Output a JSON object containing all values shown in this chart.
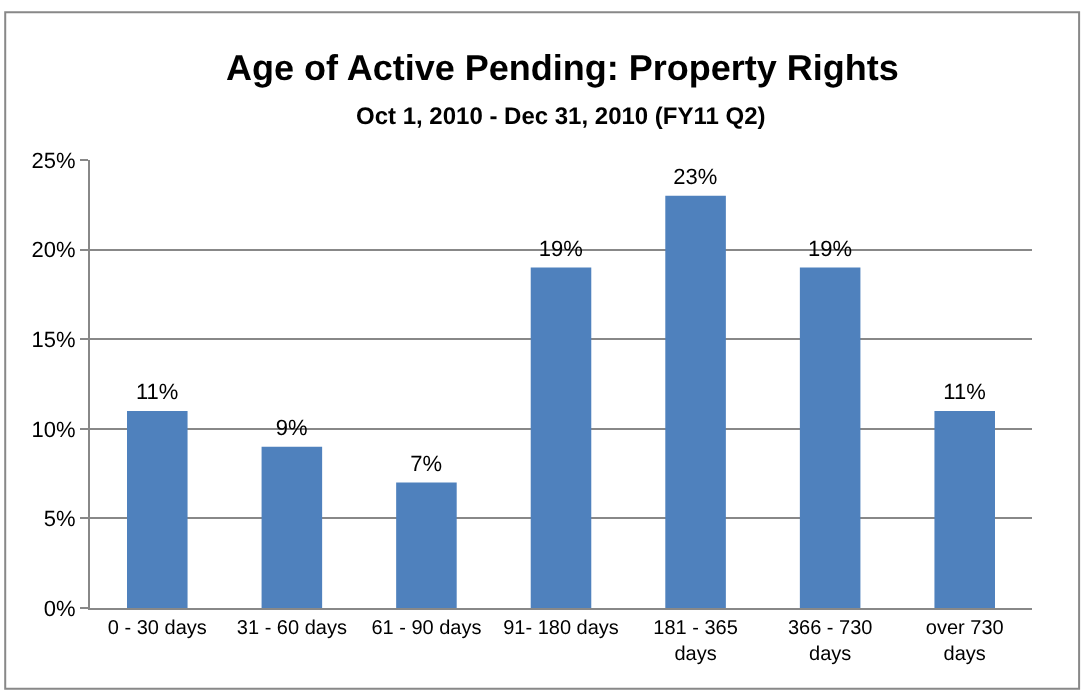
{
  "chart_data": {
    "type": "bar",
    "title": "Age of Active Pending: Property Rights",
    "subtitle": "Oct 1, 2010 - Dec 31, 2010 (FY11 Q2)",
    "categories": [
      "0 - 30 days",
      "31 - 60 days",
      "61 - 90 days",
      "91- 180 days",
      "181 - 365 days",
      "366 - 730 days",
      "over 730 days"
    ],
    "values": [
      11,
      9,
      7,
      19,
      23,
      19,
      11
    ],
    "value_labels": [
      "11%",
      "9%",
      "7%",
      "19%",
      "23%",
      "19%",
      "11%"
    ],
    "color": "#4f81bd",
    "ylim": [
      0,
      25
    ],
    "yticks": [
      {
        "value": 0,
        "label": "0%"
      },
      {
        "value": 5,
        "label": "5%"
      },
      {
        "value": 10,
        "label": "10%"
      },
      {
        "value": 15,
        "label": "15%"
      },
      {
        "value": 20,
        "label": "20%"
      },
      {
        "value": 25,
        "label": "25%"
      }
    ],
    "grid": true
  }
}
